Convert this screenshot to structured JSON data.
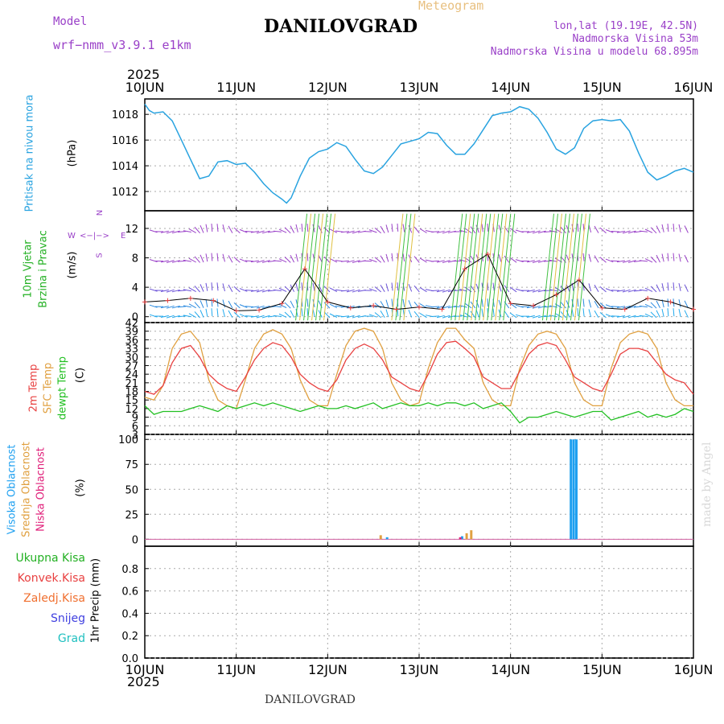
{
  "header": {
    "model_label": "Model",
    "model_name": "wrf−nmm_v3.9.1  e1km",
    "title": "DANILOVGRAD",
    "meteogram_label": "Meteogram",
    "lonlat": "lon,lat (19.19E, 42.5N)",
    "elevation": "Nadmorska Visina 53m",
    "model_elevation": "Nadmorska Visina u modelu 68.895m",
    "year_top": "2025",
    "year_bottom": "2025",
    "footer_title": "DANILOVGRAD",
    "watermark": "made by Angel"
  },
  "colors": {
    "pressure": "#29a3e0",
    "temp2m": "#e84040",
    "sfc": "#e0a040",
    "dewpt": "#22c022",
    "high_cloud": "#1fa0f0",
    "mid_cloud": "#e0a040",
    "low_cloud": "#e0207a",
    "purple": "#9a40c8",
    "wind_green": "#22b022",
    "precip_total": "#22b022",
    "precip_conv": "#e84040",
    "precip_frozen": "#f07030",
    "precip_snow": "#4040e0",
    "precip_grad": "#20c0c0"
  },
  "time_labels": [
    "10JUN",
    "11JUN",
    "12JUN",
    "13JUN",
    "14JUN",
    "15JUN",
    "16JUN"
  ],
  "panel_labels": {
    "pressure": {
      "name": "Pritisak na nivou mora",
      "unit": "(hPa)"
    },
    "wind": {
      "name1": "10m Vjetar",
      "name2": "Brzina i Pravac",
      "unit": "(m/s)",
      "compass_n": "N",
      "compass_s": "S",
      "compass_e": "E",
      "compass_w": "W",
      "compass_arrows": "<−|−>"
    },
    "temp": {
      "name1": "2m Temp",
      "name2": "SFC Temp",
      "name3": "dewpt Temp",
      "unit": "(C)"
    },
    "cloud": {
      "name1": "Visoka Oblacnost",
      "name2": "Srednja Oblacnost",
      "name3": "Niska Oblacnost",
      "unit": "(%)"
    },
    "precip": {
      "unit": "1hr Precip (mm)",
      "legend": [
        "Ukupna Kisa",
        "Konvek.Kisa",
        "Zaledj.Kisa",
        "Snijeg",
        "Grad"
      ]
    }
  },
  "chart_data": [
    {
      "type": "line",
      "title": "Pritisak na nivou mora",
      "ylabel": "(hPa)",
      "ylim": [
        1010.5,
        1019.2
      ],
      "yticks": [
        1012,
        1014,
        1016,
        1018
      ],
      "x_days": [
        0,
        0.05,
        0.1,
        0.2,
        0.3,
        0.4,
        0.5,
        0.6,
        0.7,
        0.8,
        0.9,
        1.0,
        1.1,
        1.2,
        1.3,
        1.4,
        1.5,
        1.55,
        1.6,
        1.7,
        1.8,
        1.9,
        2.0,
        2.1,
        2.2,
        2.3,
        2.4,
        2.5,
        2.6,
        2.7,
        2.8,
        2.9,
        3.0,
        3.1,
        3.2,
        3.3,
        3.4,
        3.5,
        3.6,
        3.7,
        3.8,
        3.9,
        4.0,
        4.1,
        4.2,
        4.3,
        4.4,
        4.5,
        4.6,
        4.7,
        4.8,
        4.9,
        5.0,
        5.1,
        5.2,
        5.3,
        5.4,
        5.5,
        5.6,
        5.7,
        5.8,
        5.9,
        6.0
      ],
      "series": [
        {
          "name": "",
          "values": [
            1018.8,
            1018.3,
            1018.1,
            1018.2,
            1017.5,
            1016.0,
            1014.5,
            1013.0,
            1013.2,
            1014.3,
            1014.4,
            1014.1,
            1014.2,
            1013.5,
            1012.6,
            1011.9,
            1011.4,
            1011.1,
            1011.5,
            1013.2,
            1014.6,
            1015.1,
            1015.3,
            1015.8,
            1015.5,
            1014.5,
            1013.6,
            1013.4,
            1013.9,
            1014.8,
            1015.7,
            1015.9,
            1016.1,
            1016.6,
            1016.5,
            1015.6,
            1014.9,
            1014.9,
            1015.7,
            1016.8,
            1017.9,
            1018.1,
            1018.2,
            1018.6,
            1018.4,
            1017.7,
            1016.6,
            1015.3,
            1014.9,
            1015.4,
            1016.9,
            1017.5,
            1017.6,
            1017.5,
            1017.6,
            1016.7,
            1015.0,
            1013.5,
            1012.9,
            1013.2,
            1013.6,
            1013.8,
            1013.5
          ]
        }
      ]
    },
    {
      "type": "scatter",
      "title": "10m Vjetar Brzina i Pravac",
      "ylabel": "(m/s)",
      "ylim": [
        -0.8,
        14.4
      ],
      "yticks": [
        0,
        4,
        8,
        12
      ],
      "x_days": [
        0,
        0.25,
        0.5,
        0.75,
        1.0,
        1.25,
        1.5,
        1.75,
        2.0,
        2.25,
        2.5,
        2.75,
        3.0,
        3.25,
        3.5,
        3.75,
        4.0,
        4.25,
        4.5,
        4.75,
        5.0,
        5.25,
        5.5,
        5.75,
        6.0
      ],
      "series": [
        {
          "name": "",
          "values": [
            2.0,
            2.2,
            2.5,
            2.2,
            0.8,
            0.9,
            1.8,
            6.5,
            2.0,
            1.2,
            1.5,
            1.0,
            1.3,
            1.0,
            6.5,
            8.5,
            1.8,
            1.5,
            3.0,
            5.0,
            1.2,
            1.0,
            2.5,
            2.0,
            1.0
          ]
        }
      ]
    },
    {
      "type": "line",
      "title": "2m Temp / SFC Temp / dewpt Temp",
      "ylabel": "(C)",
      "ylim": [
        3,
        42
      ],
      "yticks": [
        3,
        6,
        9,
        12,
        15,
        18,
        21,
        24,
        27,
        30,
        33,
        36,
        39,
        42
      ],
      "x_days": [
        0,
        0.1,
        0.2,
        0.3,
        0.4,
        0.5,
        0.6,
        0.7,
        0.8,
        0.9,
        1.0,
        1.1,
        1.2,
        1.3,
        1.4,
        1.5,
        1.6,
        1.7,
        1.8,
        1.9,
        2.0,
        2.1,
        2.2,
        2.3,
        2.4,
        2.5,
        2.6,
        2.7,
        2.8,
        2.9,
        3.0,
        3.1,
        3.2,
        3.3,
        3.4,
        3.5,
        3.6,
        3.7,
        3.8,
        3.9,
        4.0,
        4.1,
        4.2,
        4.3,
        4.4,
        4.5,
        4.6,
        4.7,
        4.8,
        4.9,
        5.0,
        5.1,
        5.2,
        5.3,
        5.4,
        5.5,
        5.6,
        5.7,
        5.8,
        5.9,
        6.0
      ],
      "series": [
        {
          "name": "2m Temp",
          "values": [
            18,
            17,
            20,
            28,
            33,
            34,
            30,
            24,
            21,
            19,
            18,
            23,
            29,
            33,
            35,
            34,
            30,
            24,
            21,
            19,
            18,
            22,
            29,
            33,
            34.5,
            33,
            29,
            23,
            21,
            19,
            18,
            24,
            31,
            35,
            35.5,
            33,
            30,
            23,
            21,
            19,
            19,
            25,
            31,
            34,
            35,
            34,
            29,
            23,
            21,
            19,
            18,
            24,
            31,
            33,
            33,
            32,
            28,
            24,
            22,
            21,
            17
          ]
        },
        {
          "name": "SFC Temp",
          "values": [
            16,
            15,
            20,
            33,
            38,
            39,
            35,
            22,
            15,
            13,
            12,
            22,
            33,
            38,
            39.5,
            38,
            33,
            22,
            15,
            13,
            13,
            24,
            34,
            39,
            40,
            39,
            33,
            21,
            15,
            13,
            14,
            26,
            35,
            40,
            40,
            36,
            33,
            21,
            15,
            13,
            13,
            26,
            34,
            38,
            39,
            38,
            33,
            21,
            15,
            13,
            13,
            26,
            35,
            38,
            39,
            38,
            33,
            21,
            15,
            13,
            13
          ]
        },
        {
          "name": "dewpt Temp",
          "values": [
            13,
            10,
            11,
            11,
            11,
            12,
            13,
            12,
            11,
            13,
            12,
            13,
            14,
            13,
            14,
            13,
            12,
            11,
            12,
            13,
            12,
            12,
            13,
            12,
            13,
            14,
            12,
            13,
            14,
            13,
            13,
            14,
            13,
            14,
            14,
            13,
            14,
            12,
            13,
            14,
            11,
            7,
            9,
            9,
            10,
            11,
            10,
            9,
            10,
            11,
            11,
            8,
            9,
            10,
            11,
            9,
            10,
            9,
            10,
            12,
            11
          ]
        }
      ]
    },
    {
      "type": "bar",
      "title": "Visoka / Srednja / Niska Oblacnost",
      "ylabel": "(%)",
      "ylim": [
        -7,
        105
      ],
      "yticks": [
        0,
        25,
        50,
        75,
        100
      ],
      "series": [
        {
          "name": "Visoka Oblacnost",
          "x_days": [
            2.65,
            3.47,
            4.66,
            4.69,
            4.72
          ],
          "values": [
            2,
            3,
            100,
            100,
            100
          ]
        },
        {
          "name": "Srednja Oblacnost",
          "x_days": [
            2.58,
            3.52,
            3.57
          ],
          "values": [
            4,
            6,
            9
          ]
        },
        {
          "name": "Niska Oblacnost",
          "x_days": [
            3.45
          ],
          "values": [
            2
          ]
        }
      ]
    },
    {
      "type": "bar",
      "title": "1hr Precip",
      "ylabel": "1hr Precip (mm)",
      "ylim": [
        0,
        1.0
      ],
      "yticks": [
        0,
        0.2,
        0.4,
        0.6,
        0.8
      ],
      "series": [
        {
          "name": "Ukupna Kisa",
          "values": []
        },
        {
          "name": "Konvek.Kisa",
          "values": []
        },
        {
          "name": "Zaledj.Kisa",
          "values": []
        },
        {
          "name": "Snijeg",
          "values": []
        },
        {
          "name": "Grad",
          "values": []
        }
      ]
    }
  ]
}
